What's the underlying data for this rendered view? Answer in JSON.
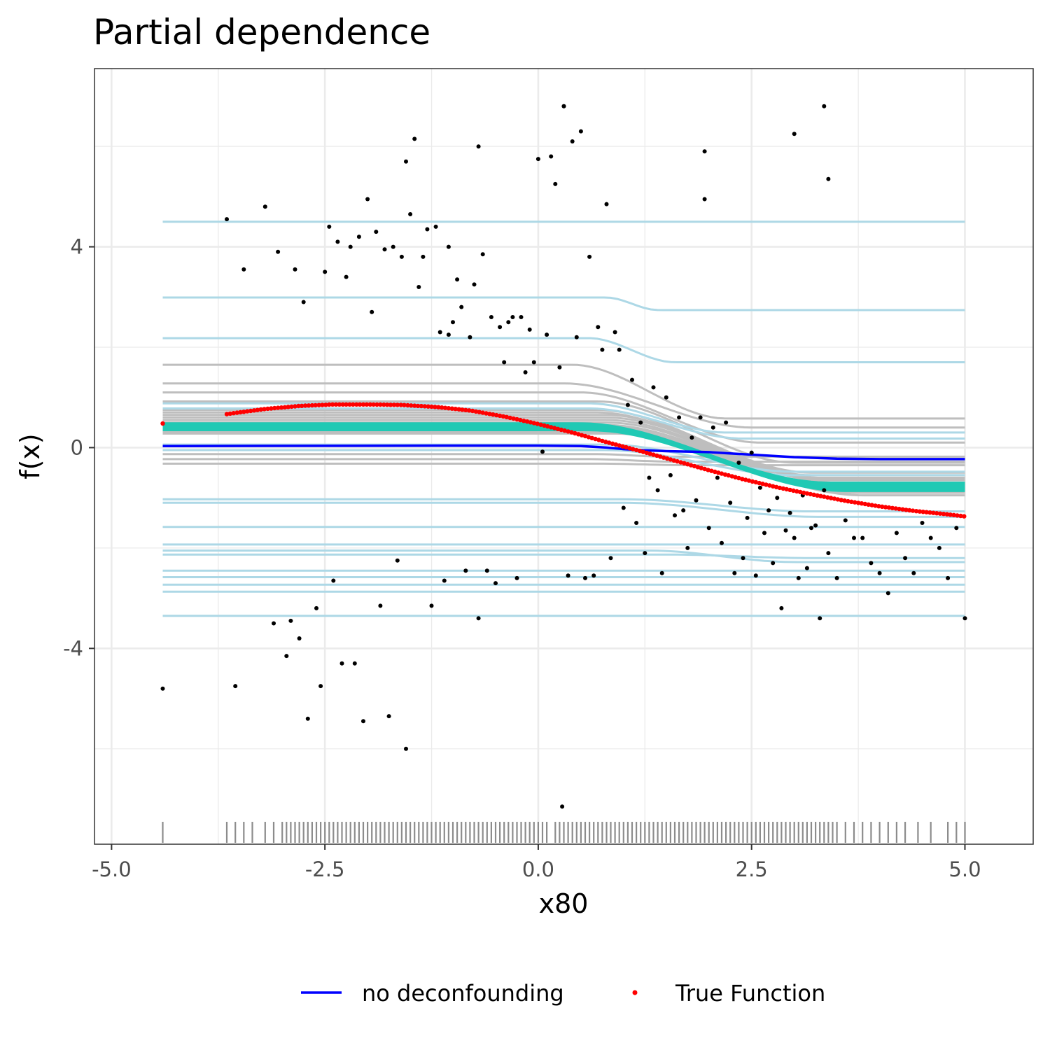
{
  "colors": {
    "no_deconfounding": "#0000ff",
    "true_function": "#ff0000",
    "ice_gray": "#bebebe",
    "ice_lightblue": "#add8e6",
    "band_teal": "#20c9b4",
    "points": "#000000",
    "rug": "#8c8c8c",
    "grid": "#ebebeb",
    "panel_border": "#333333"
  },
  "chart_data": {
    "type": "line",
    "title": "Partial dependence",
    "xlabel": "x80",
    "ylabel": "f(x)",
    "xlim": [
      -5.2,
      5.8
    ],
    "ylim": [
      -7.9,
      7.55
    ],
    "x_ticks": [
      -5.0,
      -2.5,
      0.0,
      2.5,
      5.0
    ],
    "x_tick_labels": [
      "-5.0",
      "-2.5",
      "0.0",
      "2.5",
      "5.0"
    ],
    "y_ticks": [
      -4,
      0,
      4
    ],
    "y_tick_labels": [
      "-4",
      "0",
      "4"
    ],
    "grid": true,
    "legend": {
      "position": "bottom",
      "entries": [
        {
          "label": "no deconfounding",
          "kind": "line"
        },
        {
          "label": "True Function",
          "kind": "point"
        }
      ]
    },
    "series": [
      {
        "name": "no deconfounding",
        "kind": "line",
        "x": [
          -4.4,
          -1.0,
          0.0,
          0.5,
          0.8,
          1.0,
          1.2,
          1.5,
          1.8,
          2.0,
          2.3,
          2.5,
          2.8,
          3.0,
          3.5,
          4.0,
          5.0
        ],
        "y": [
          0.03,
          0.04,
          0.04,
          0.03,
          0.0,
          -0.03,
          -0.05,
          -0.07,
          -0.08,
          -0.09,
          -0.12,
          -0.14,
          -0.17,
          -0.19,
          -0.22,
          -0.23,
          -0.23
        ]
      },
      {
        "name": "True Function",
        "kind": "points",
        "x": [
          -4.4,
          -3.6,
          -3.2,
          -2.8,
          -2.4,
          -2.0,
          -1.6,
          -1.2,
          -0.8,
          -0.4,
          0.0,
          0.4,
          0.8,
          1.2,
          1.6,
          2.0,
          2.4,
          2.8,
          3.2,
          3.6,
          4.0,
          4.4,
          4.8,
          5.0
        ],
        "y": [
          0.48,
          0.68,
          0.77,
          0.83,
          0.86,
          0.86,
          0.85,
          0.81,
          0.74,
          0.62,
          0.47,
          0.3,
          0.11,
          -0.07,
          -0.26,
          -0.45,
          -0.63,
          -0.79,
          -0.93,
          -1.06,
          -1.17,
          -1.26,
          -1.33,
          -1.37
        ]
      }
    ],
    "ice_curves_gray": [
      {
        "start": 1.65,
        "end": 0.58,
        "drop_from": 0.4,
        "drop_to": 2.2
      },
      {
        "start": 1.28,
        "end": 0.4,
        "drop_from": 0.3,
        "drop_to": 2.5
      },
      {
        "start": 1.1,
        "end": 0.1,
        "drop_from": 0.5,
        "drop_to": 2.6
      },
      {
        "start": 0.92,
        "end": -0.3,
        "drop_from": 0.7,
        "drop_to": 3.0
      },
      {
        "start": 0.75,
        "end": -0.5,
        "drop_from": 0.7,
        "drop_to": 3.2
      },
      {
        "start": 0.7,
        "end": -0.55,
        "drop_from": 0.7,
        "drop_to": 3.2
      },
      {
        "start": 0.65,
        "end": -0.6,
        "drop_from": 0.8,
        "drop_to": 3.3
      },
      {
        "start": 0.6,
        "end": -0.62,
        "drop_from": 0.8,
        "drop_to": 3.4
      },
      {
        "start": 0.55,
        "end": -0.65,
        "drop_from": 0.8,
        "drop_to": 3.4
      },
      {
        "start": 0.5,
        "end": -0.7,
        "drop_from": 0.8,
        "drop_to": 3.5
      },
      {
        "start": 0.45,
        "end": -0.75,
        "drop_from": 0.8,
        "drop_to": 3.5
      },
      {
        "start": 0.4,
        "end": -0.8,
        "drop_from": 0.9,
        "drop_to": 3.6
      },
      {
        "start": 0.36,
        "end": -0.85,
        "drop_from": 0.9,
        "drop_to": 3.6
      },
      {
        "start": 0.32,
        "end": -0.9,
        "drop_from": 0.9,
        "drop_to": 3.7
      },
      {
        "start": 0.28,
        "end": -0.95,
        "drop_from": 0.9,
        "drop_to": 3.8
      },
      {
        "start": -0.23,
        "end": -0.28,
        "drop_from": 0.6,
        "drop_to": 1.6
      },
      {
        "start": -0.32,
        "end": -0.35,
        "drop_from": 0.7,
        "drop_to": 1.8
      },
      {
        "start": -0.13,
        "end": -0.18,
        "drop_from": 0.7,
        "drop_to": 1.5
      }
    ],
    "ice_curves_teal": [
      {
        "start": 0.48,
        "end": -0.7,
        "drop_from": 0.5,
        "drop_to": 3.4
      },
      {
        "start": 0.44,
        "end": -0.74,
        "drop_from": 0.5,
        "drop_to": 3.4
      },
      {
        "start": 0.41,
        "end": -0.78,
        "drop_from": 0.5,
        "drop_to": 3.5
      },
      {
        "start": 0.38,
        "end": -0.82,
        "drop_from": 0.6,
        "drop_to": 3.5
      },
      {
        "start": 0.35,
        "end": -0.86,
        "drop_from": 0.6,
        "drop_to": 3.6
      }
    ],
    "ice_curves_lightblue": [
      {
        "start": 4.5,
        "end": 4.5,
        "drop_from": 0,
        "drop_to": 0
      },
      {
        "start": 2.99,
        "end": 2.74,
        "drop_from": 0.8,
        "drop_to": 1.4
      },
      {
        "start": 2.18,
        "end": 1.7,
        "drop_from": 0.6,
        "drop_to": 1.6
      },
      {
        "start": 0.88,
        "end": 0.3,
        "drop_from": 0.6,
        "drop_to": 2.2
      },
      {
        "start": 0.78,
        "end": 0.18,
        "drop_from": 0.6,
        "drop_to": 2.4
      },
      {
        "start": 0.06,
        "end": -0.48,
        "drop_from": 0.8,
        "drop_to": 3.0
      },
      {
        "start": -0.05,
        "end": -0.55,
        "drop_from": 0.8,
        "drop_to": 3.0
      },
      {
        "start": -1.03,
        "end": -1.27,
        "drop_from": 1.0,
        "drop_to": 3.2
      },
      {
        "start": -1.1,
        "end": -1.38,
        "drop_from": 1.0,
        "drop_to": 3.3
      },
      {
        "start": -1.58,
        "end": -1.58,
        "drop_from": 0,
        "drop_to": 0
      },
      {
        "start": -1.93,
        "end": -1.93,
        "drop_from": 0,
        "drop_to": 0
      },
      {
        "start": -2.05,
        "end": -2.28,
        "drop_from": 1.3,
        "drop_to": 3.0
      },
      {
        "start": -2.13,
        "end": -2.2,
        "drop_from": 1.5,
        "drop_to": 3.2
      },
      {
        "start": -2.45,
        "end": -2.45,
        "drop_from": 0,
        "drop_to": 0
      },
      {
        "start": -2.58,
        "end": -2.58,
        "drop_from": 0,
        "drop_to": 0
      },
      {
        "start": -2.73,
        "end": -2.73,
        "drop_from": 0,
        "drop_to": 0
      },
      {
        "start": -2.87,
        "end": -2.87,
        "drop_from": 0,
        "drop_to": 0
      },
      {
        "start": -3.35,
        "end": -3.35,
        "drop_from": 0,
        "drop_to": 0
      }
    ],
    "ice_x_range": [
      -4.4,
      5.0
    ],
    "observations": {
      "x": [
        -4.4,
        -3.65,
        -3.55,
        -3.45,
        -3.2,
        -3.1,
        -3.05,
        -2.95,
        -2.9,
        -2.85,
        -2.8,
        -2.75,
        -2.7,
        -2.6,
        -2.55,
        -2.5,
        -2.45,
        -2.4,
        -2.35,
        -2.3,
        -2.25,
        -2.2,
        -2.15,
        -2.1,
        -2.05,
        -2.0,
        -1.95,
        -1.9,
        -1.85,
        -1.8,
        -1.75,
        -1.7,
        -1.65,
        -1.6,
        -1.55,
        -1.5,
        -1.45,
        -1.4,
        -1.35,
        -1.3,
        -1.25,
        -1.2,
        -1.15,
        -1.1,
        -1.05,
        -1.0,
        -0.95,
        -0.9,
        -0.85,
        -0.8,
        -0.75,
        -0.7,
        -0.65,
        -0.6,
        -0.55,
        -0.5,
        -0.45,
        -0.4,
        -0.35,
        -0.3,
        -0.25,
        -0.2,
        -0.15,
        -0.1,
        -0.05,
        0.0,
        0.05,
        0.1,
        0.15,
        0.2,
        0.25,
        0.3,
        0.35,
        0.4,
        0.45,
        0.5,
        0.55,
        0.6,
        0.65,
        0.7,
        0.75,
        0.8,
        0.85,
        0.9,
        0.95,
        1.0,
        1.05,
        1.1,
        1.15,
        1.2,
        1.25,
        1.3,
        1.35,
        1.4,
        1.45,
        1.5,
        1.55,
        1.6,
        1.65,
        1.7,
        1.75,
        1.8,
        1.85,
        1.9,
        1.95,
        2.0,
        2.05,
        2.1,
        2.15,
        2.2,
        2.25,
        2.3,
        2.35,
        2.4,
        2.45,
        2.5,
        2.55,
        2.6,
        2.65,
        2.7,
        2.75,
        2.8,
        2.85,
        2.9,
        2.95,
        3.0,
        3.05,
        3.1,
        3.15,
        3.2,
        3.25,
        3.3,
        3.35,
        3.4,
        3.5,
        3.6,
        3.7,
        3.8,
        3.9,
        4.0,
        4.1,
        4.2,
        4.3,
        4.4,
        4.5,
        4.6,
        4.7,
        4.8,
        4.9,
        5.0,
        0.28,
        0.3,
        3.0,
        3.35,
        3.4,
        1.95,
        -1.55,
        -0.7,
        -1.05
      ],
      "y": [
        -4.8,
        4.55,
        -4.75,
        3.55,
        4.8,
        -3.5,
        3.9,
        -4.15,
        -3.45,
        3.55,
        -3.8,
        2.9,
        -5.4,
        -3.2,
        -4.75,
        3.5,
        4.4,
        -2.65,
        4.1,
        -4.3,
        3.4,
        4.0,
        -4.3,
        4.2,
        -5.45,
        4.95,
        2.7,
        4.3,
        -3.15,
        3.95,
        -5.35,
        4.0,
        -2.25,
        3.8,
        -6.0,
        4.65,
        6.15,
        3.2,
        3.8,
        4.35,
        -3.15,
        4.4,
        2.3,
        -2.65,
        4.0,
        2.5,
        3.35,
        2.8,
        -2.45,
        2.2,
        3.25,
        6.0,
        3.85,
        -2.45,
        2.6,
        -2.7,
        2.4,
        1.7,
        2.5,
        2.6,
        -2.6,
        2.6,
        1.5,
        2.35,
        1.7,
        5.75,
        -0.08,
        2.25,
        5.8,
        5.25,
        1.6,
        6.8,
        -2.55,
        6.1,
        2.2,
        6.3,
        -2.6,
        3.8,
        -2.55,
        2.4,
        1.95,
        4.85,
        -2.2,
        2.3,
        1.95,
        -1.2,
        0.85,
        1.35,
        -1.5,
        0.5,
        -2.1,
        -0.6,
        1.2,
        -0.85,
        -2.5,
        1.0,
        -0.55,
        -1.35,
        0.6,
        -1.25,
        -2.0,
        0.2,
        -1.05,
        0.6,
        4.95,
        -1.6,
        0.4,
        -0.6,
        -1.9,
        0.5,
        -1.1,
        -2.5,
        -0.3,
        -2.2,
        -1.4,
        -0.1,
        -2.55,
        -0.8,
        -1.7,
        -1.25,
        -2.3,
        -1.0,
        -3.2,
        -1.65,
        -1.3,
        -1.8,
        -2.6,
        -0.95,
        -2.4,
        -1.6,
        -1.55,
        -3.4,
        -0.85,
        -2.1,
        -2.6,
        -1.45,
        -1.8,
        -1.8,
        -2.3,
        -2.5,
        -2.9,
        -1.7,
        -2.2,
        -2.5,
        -1.5,
        -1.8,
        -2.0,
        -2.6,
        -1.6,
        -3.4,
        -7.15,
        6.8,
        6.25,
        6.8,
        5.35,
        5.9,
        5.7,
        -3.4,
        2.25
      ]
    },
    "rug_x": [
      -4.4,
      -3.65,
      -3.55,
      -3.45,
      -3.35,
      -3.2,
      -3.1,
      -3.0,
      -2.95,
      -2.9,
      -2.85,
      -2.8,
      -2.75,
      -2.7,
      -2.65,
      -2.6,
      -2.55,
      -2.5,
      -2.45,
      -2.4,
      -2.35,
      -2.3,
      -2.25,
      -2.2,
      -2.15,
      -2.1,
      -2.05,
      -2.0,
      -1.95,
      -1.9,
      -1.85,
      -1.8,
      -1.75,
      -1.7,
      -1.65,
      -1.6,
      -1.55,
      -1.5,
      -1.45,
      -1.4,
      -1.35,
      -1.3,
      -1.25,
      -1.2,
      -1.15,
      -1.1,
      -1.05,
      -1.0,
      -0.95,
      -0.9,
      -0.85,
      -0.8,
      -0.75,
      -0.7,
      -0.65,
      -0.6,
      -0.55,
      -0.5,
      -0.45,
      -0.4,
      -0.35,
      -0.3,
      -0.25,
      -0.2,
      -0.15,
      -0.1,
      -0.05,
      0.0,
      0.05,
      0.1,
      0.2,
      0.25,
      0.3,
      0.35,
      0.4,
      0.45,
      0.5,
      0.55,
      0.6,
      0.65,
      0.7,
      0.75,
      0.8,
      0.85,
      0.9,
      0.95,
      1.0,
      1.05,
      1.1,
      1.15,
      1.2,
      1.25,
      1.3,
      1.35,
      1.4,
      1.45,
      1.5,
      1.55,
      1.6,
      1.65,
      1.7,
      1.75,
      1.8,
      1.85,
      1.9,
      1.95,
      2.0,
      2.05,
      2.1,
      2.15,
      2.2,
      2.25,
      2.3,
      2.35,
      2.4,
      2.45,
      2.5,
      2.55,
      2.6,
      2.65,
      2.7,
      2.75,
      2.8,
      2.85,
      2.9,
      2.95,
      3.0,
      3.05,
      3.1,
      3.15,
      3.2,
      3.25,
      3.3,
      3.35,
      3.4,
      3.45,
      3.5,
      3.6,
      3.7,
      3.8,
      3.9,
      4.0,
      4.1,
      4.2,
      4.3,
      4.45,
      4.6,
      4.8,
      4.9,
      5.0
    ]
  }
}
